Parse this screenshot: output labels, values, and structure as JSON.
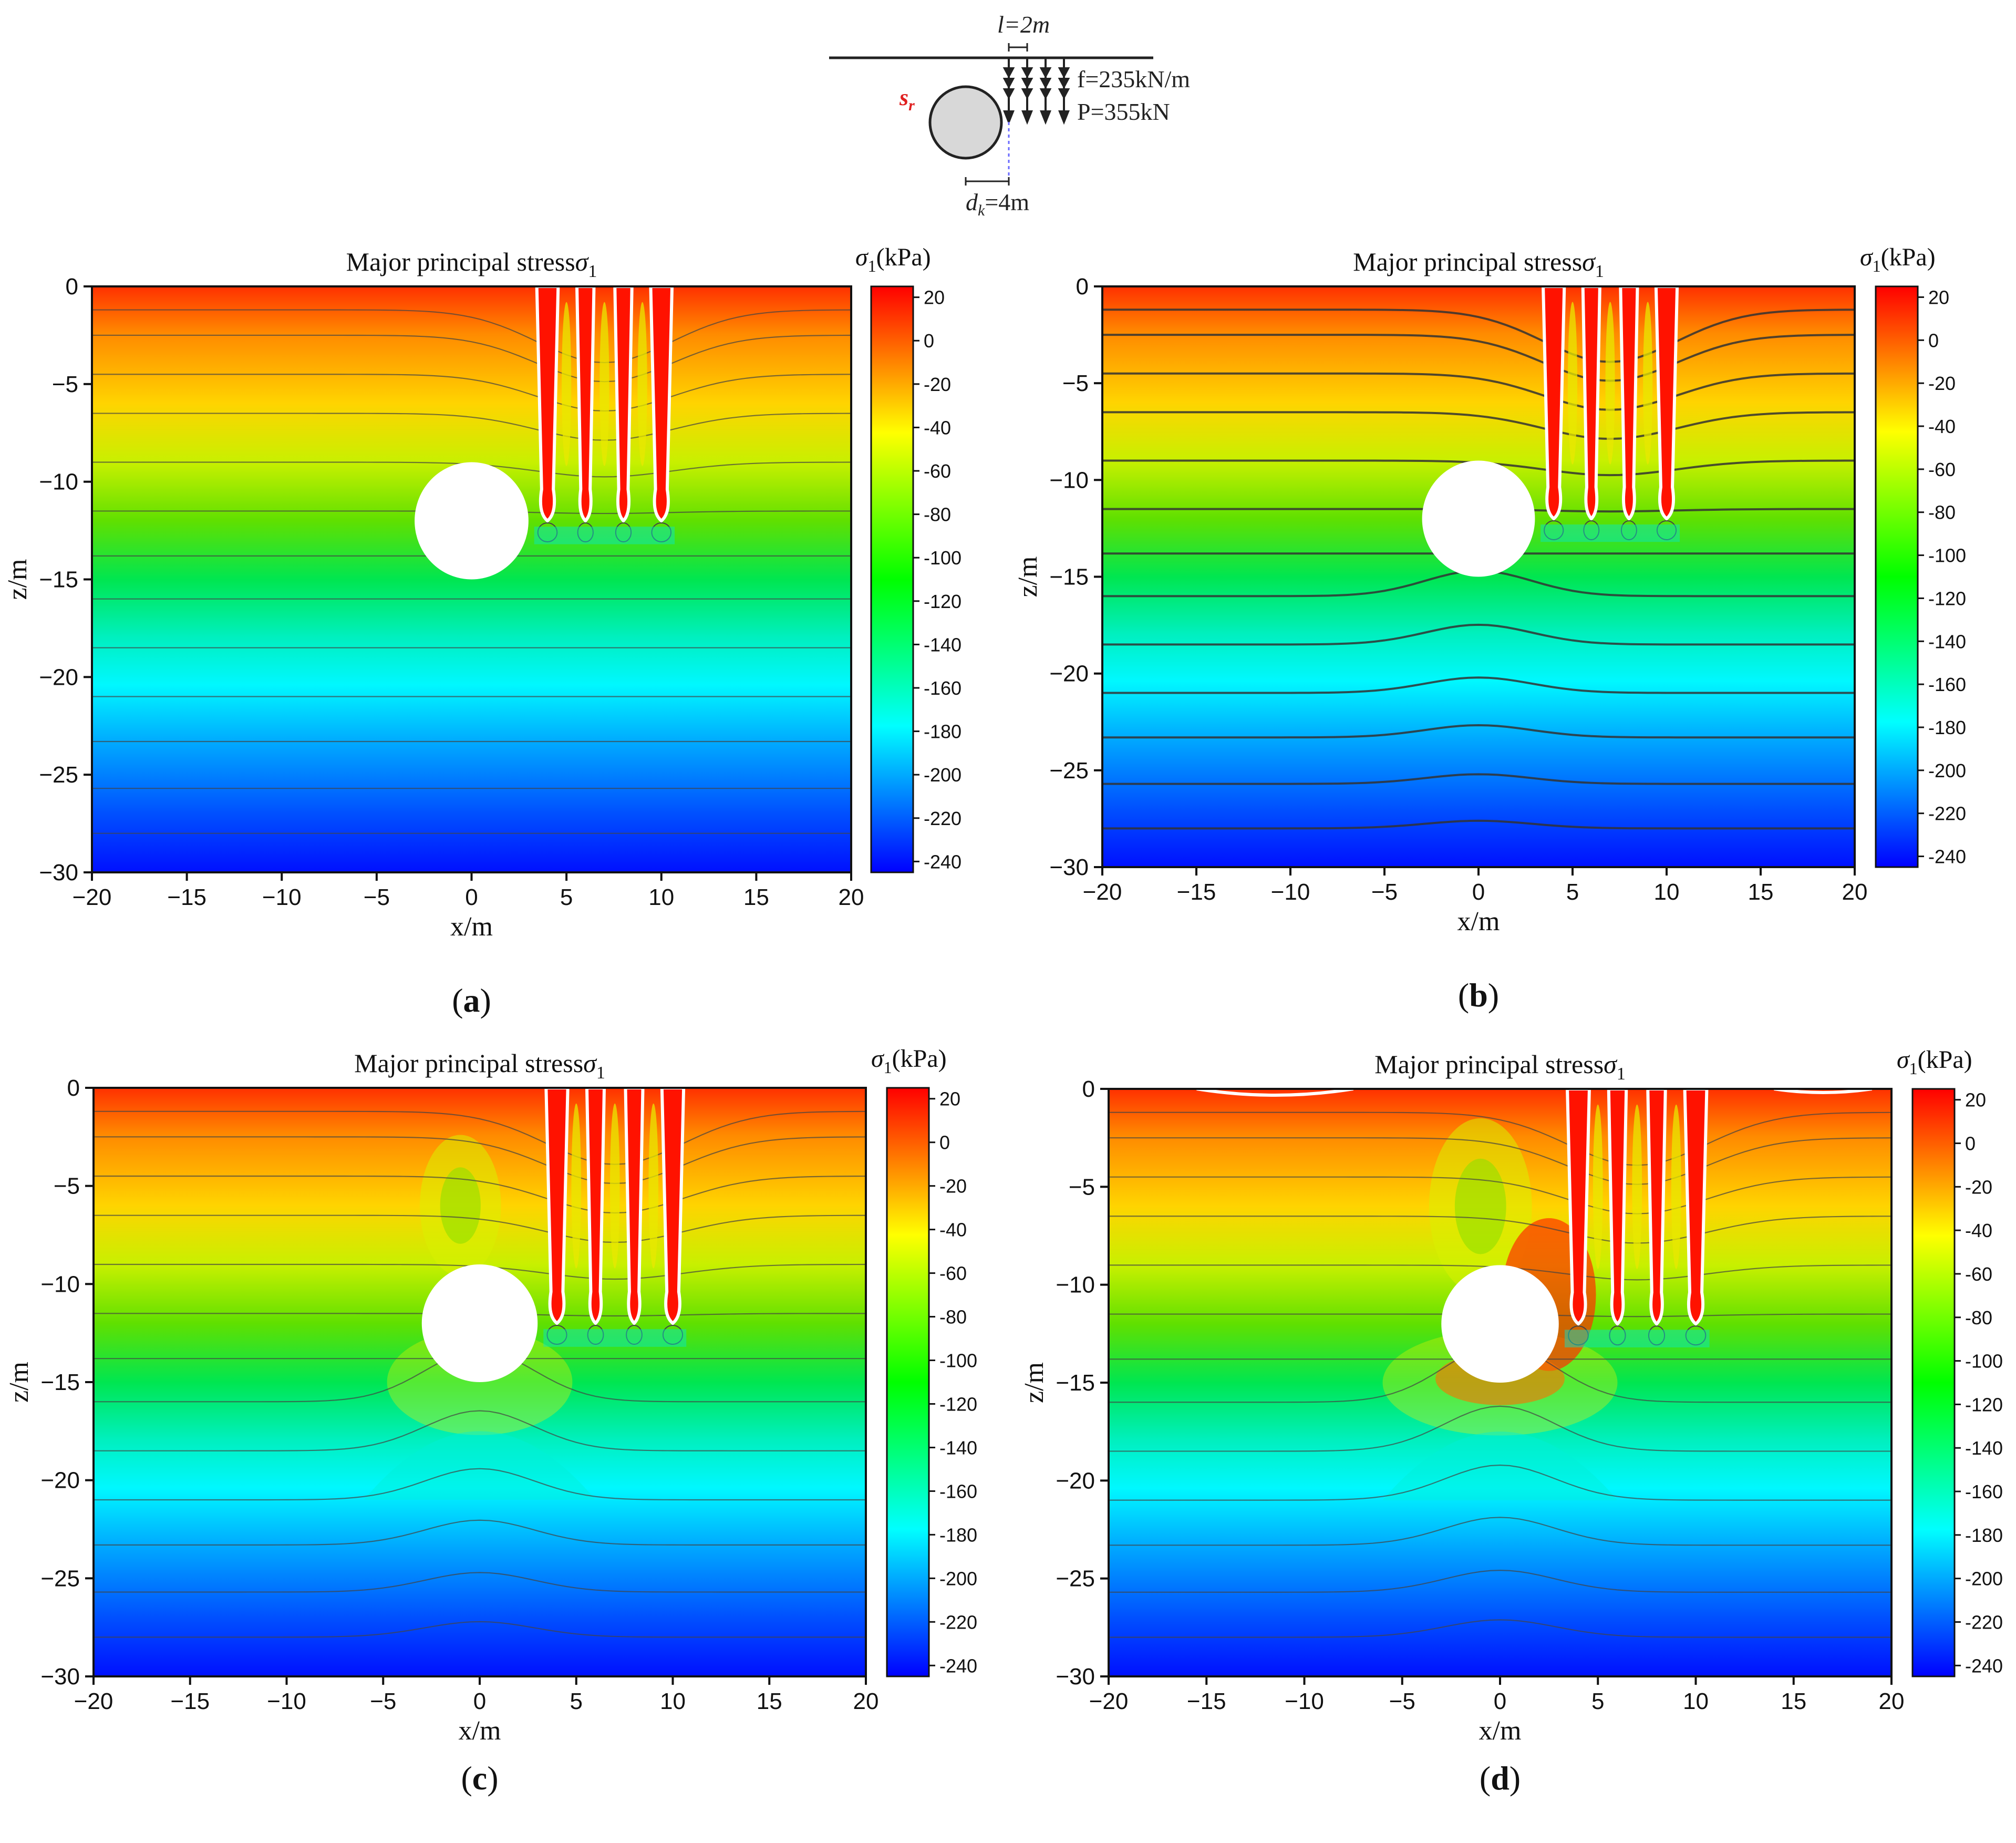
{
  "schematic": {
    "l_label": "l=2m",
    "f_label": "f=235kN/m",
    "P_label": "P=355kN",
    "sr_label": "s",
    "sr_sub": "r",
    "dk_label": "d",
    "dk_sub": "k",
    "dk_value": "=4m"
  },
  "panels": [
    {
      "id": "a",
      "caption": "(a)",
      "title": "Major principal stress",
      "title_symbol": "σ",
      "title_sub": "1",
      "cbar_label": "σ1(kPa)"
    },
    {
      "id": "b",
      "caption": "(b)",
      "title": "Major principal stress",
      "title_symbol": "σ",
      "title_sub": "1",
      "cbar_label": "σ1(kPa)"
    },
    {
      "id": "c",
      "caption": "(c)",
      "title": "Major principal stress",
      "title_symbol": "σ",
      "title_sub": "1",
      "cbar_label": "σ1(kPa)"
    },
    {
      "id": "d",
      "caption": "(d)",
      "title": "Major principal stress",
      "title_symbol": "σ",
      "title_sub": "1",
      "cbar_label": "σ1(kPa)"
    }
  ],
  "chart_data": {
    "type": "heatmap",
    "xlabel": "x/m",
    "ylabel": "z/m",
    "xlim": [
      -20,
      20
    ],
    "ylim": [
      -30,
      0
    ],
    "xticks": [
      -20,
      -15,
      -10,
      -5,
      0,
      5,
      10,
      15,
      20
    ],
    "yticks": [
      0,
      -5,
      -10,
      -15,
      -20,
      -25,
      -30
    ],
    "colorbar": {
      "label": "σ1(kPa)",
      "range": [
        -245,
        25
      ],
      "ticks": [
        20,
        0,
        -20,
        -40,
        -60,
        -80,
        -100,
        -120,
        -140,
        -160,
        -180,
        -200,
        -220,
        -240
      ],
      "colormap": [
        "#0000ff",
        "#00ffff",
        "#00ff00",
        "#ffff00",
        "#ff0000"
      ]
    },
    "tunnel": {
      "center_x": 0,
      "center_z": -12,
      "radius": 3
    },
    "load_strips": {
      "x": [
        4,
        6,
        8,
        10
      ],
      "depth": 12,
      "spacing_l": 2
    },
    "offset_dk": 4,
    "surface_stress": 10,
    "bottom_stress": -240
  }
}
